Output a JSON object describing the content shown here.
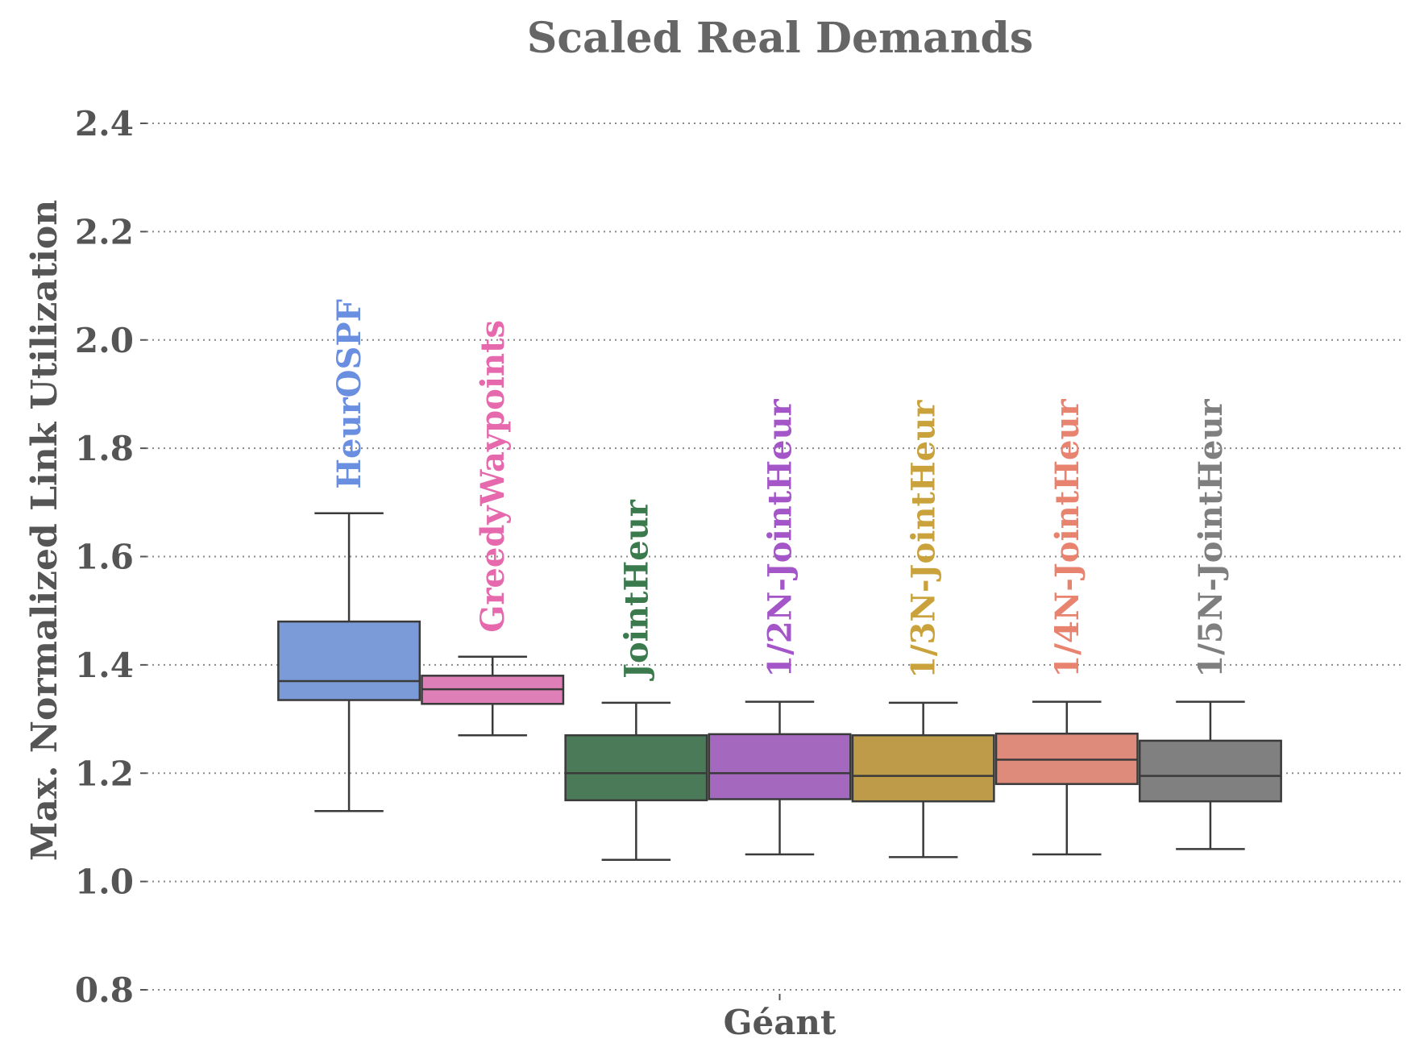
{
  "chart_data": {
    "type": "box",
    "title": "Scaled Real Demands",
    "xlabel": "",
    "ylabel": "Max. Normalized Link Utilization",
    "categories": [
      "Géant"
    ],
    "ylim": [
      0.8,
      2.47
    ],
    "yticks": [
      0.8,
      1.0,
      1.2,
      1.4,
      1.6,
      1.8,
      2.0,
      2.2,
      2.4
    ],
    "ytick_labels": [
      "0.8",
      "1.0",
      "1.2",
      "1.4",
      "1.6",
      "1.8",
      "2.0",
      "2.2",
      "2.4"
    ],
    "grid": "horizontal dotted",
    "series": [
      {
        "name": "HeurOSPF",
        "color": "#7b9bd8",
        "label_color": "#6a8fe0",
        "whisker_low": 1.13,
        "q1": 1.335,
        "median": 1.37,
        "q3": 1.48,
        "whisker_high": 1.68
      },
      {
        "name": "GreedyWaypoints",
        "color": "#de7fb8",
        "label_color": "#e569ac",
        "whisker_low": 1.27,
        "q1": 1.328,
        "median": 1.355,
        "q3": 1.38,
        "whisker_high": 1.415
      },
      {
        "name": "JointHeur",
        "color": "#4a7a57",
        "label_color": "#3b7a4d",
        "whisker_low": 1.04,
        "q1": 1.15,
        "median": 1.2,
        "q3": 1.27,
        "whisker_high": 1.33
      },
      {
        "name": "1/2N-JointHeur",
        "color": "#a468bf",
        "label_color": "#a455c8",
        "whisker_low": 1.05,
        "q1": 1.152,
        "median": 1.2,
        "q3": 1.272,
        "whisker_high": 1.332
      },
      {
        "name": "1/3N-JointHeur",
        "color": "#bd9b48",
        "label_color": "#c9a23c",
        "whisker_low": 1.045,
        "q1": 1.148,
        "median": 1.195,
        "q3": 1.27,
        "whisker_high": 1.33
      },
      {
        "name": "1/4N-JointHeur",
        "color": "#de8b7c",
        "label_color": "#e88370",
        "whisker_low": 1.05,
        "q1": 1.18,
        "median": 1.225,
        "q3": 1.273,
        "whisker_high": 1.332
      },
      {
        "name": "1/5N-JointHeur",
        "color": "#808080",
        "label_color": "#7f7f7f",
        "whisker_low": 1.06,
        "q1": 1.148,
        "median": 1.195,
        "q3": 1.26,
        "whisker_high": 1.332
      }
    ]
  }
}
